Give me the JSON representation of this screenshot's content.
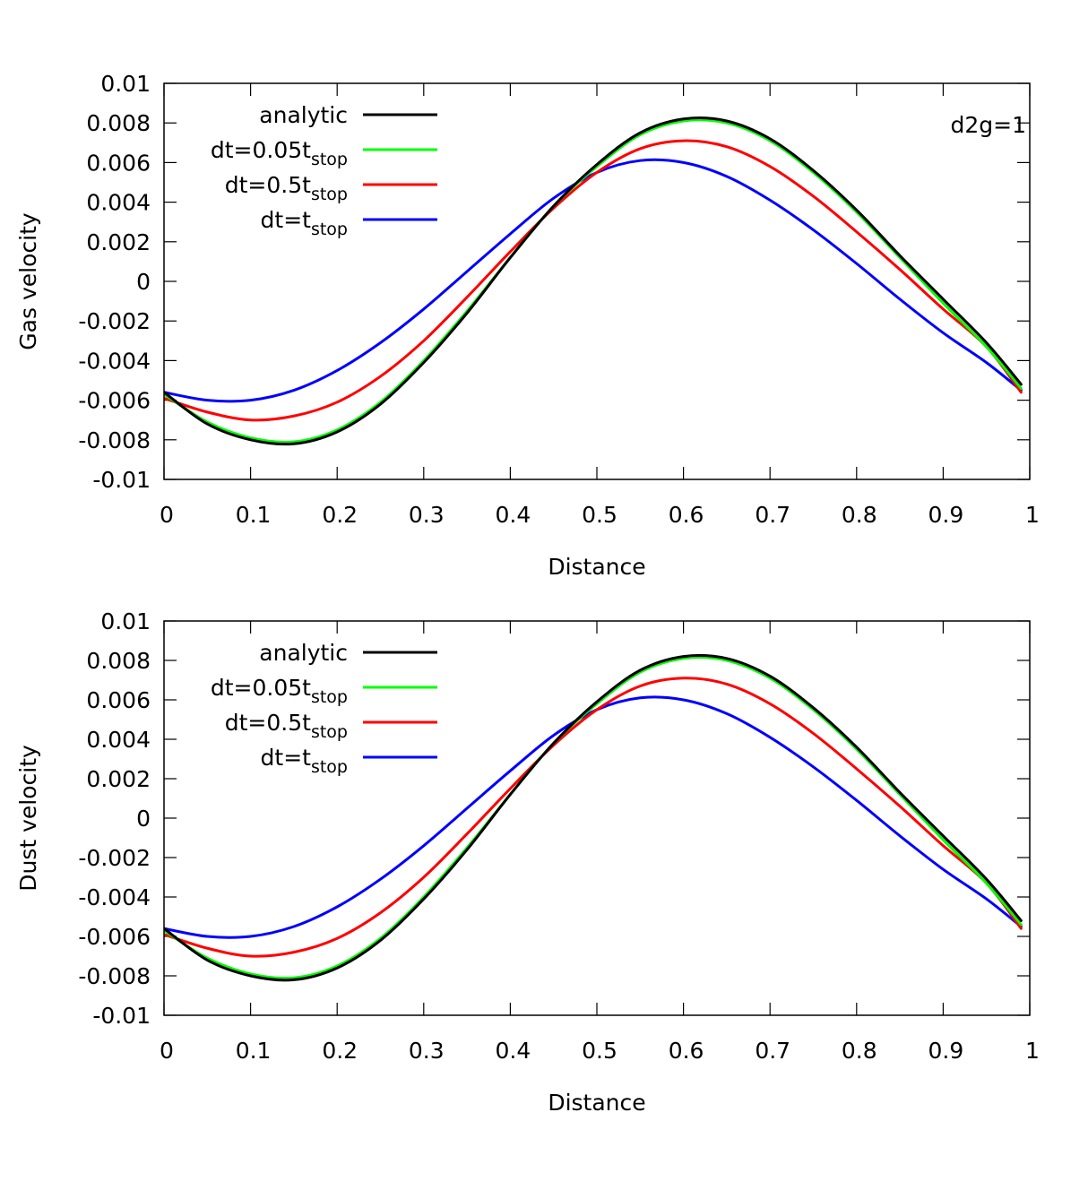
{
  "chart_data": [
    {
      "type": "line",
      "title": "",
      "xlabel": "Distance",
      "ylabel": "Gas velocity",
      "xlim": [
        0,
        1
      ],
      "ylim": [
        -0.01,
        0.01
      ],
      "xticks": [
        "0",
        "0.1",
        "0.2",
        "0.3",
        "0.4",
        "0.5",
        "0.6",
        "0.7",
        "0.8",
        "0.9",
        "1"
      ],
      "yticks": [
        "0.01",
        "0.008",
        "0.006",
        "0.004",
        "0.002",
        "0",
        "-0.002",
        "-0.004",
        "-0.006",
        "-0.008",
        "-0.01"
      ],
      "annotation": "d2g=1",
      "x": [
        0,
        0.05,
        0.1,
        0.15,
        0.2,
        0.25,
        0.3,
        0.35,
        0.4,
        0.45,
        0.5,
        0.55,
        0.6,
        0.65,
        0.7,
        0.75,
        0.8,
        0.85,
        0.9,
        0.95,
        0.99
      ],
      "series": [
        {
          "name": "analytic",
          "legend": {
            "main": "analytic",
            "sub": ""
          },
          "color": "#000000",
          "values": [
            -0.0056,
            -0.0072,
            -0.008,
            -0.0082,
            -0.0076,
            -0.0062,
            -0.0041,
            -0.0016,
            0.0012,
            0.0038,
            0.0059,
            0.0075,
            0.0082,
            0.0081,
            0.0072,
            0.0056,
            0.0036,
            0.0013,
            -0.0009,
            -0.0031,
            -0.0052
          ]
        },
        {
          "name": "dt=0.05t_stop",
          "legend": {
            "main": "dt=0.05t",
            "sub": "stop"
          },
          "color": "#00ff00",
          "values": [
            -0.0057,
            -0.0071,
            -0.0079,
            -0.0081,
            -0.0075,
            -0.0061,
            -0.004,
            -0.0015,
            0.0012,
            0.0038,
            0.0058,
            0.0074,
            0.0081,
            0.008,
            0.0071,
            0.0055,
            0.0035,
            0.0012,
            -0.0011,
            -0.0033,
            -0.0054
          ]
        },
        {
          "name": "dt=0.5t_stop",
          "legend": {
            "main": "dt=0.5t",
            "sub": "stop"
          },
          "color": "#ff0000",
          "values": [
            -0.0059,
            -0.0066,
            -0.007,
            -0.0068,
            -0.0061,
            -0.0048,
            -0.003,
            -0.0008,
            0.0015,
            0.0037,
            0.0055,
            0.0067,
            0.0071,
            0.0068,
            0.0058,
            0.0043,
            0.0025,
            0.0006,
            -0.0014,
            -0.0033,
            -0.0056
          ]
        },
        {
          "name": "dt=t_stop",
          "legend": {
            "main": "dt=t",
            "sub": "stop"
          },
          "color": "#0000ff",
          "values": [
            -0.0056,
            -0.006,
            -0.006,
            -0.0055,
            -0.0045,
            -0.0031,
            -0.0014,
            0.0005,
            0.0024,
            0.0042,
            0.0055,
            0.0061,
            0.006,
            0.0053,
            0.0041,
            0.0026,
            0.0009,
            -0.0009,
            -0.0026,
            -0.0041,
            -0.0055
          ]
        }
      ]
    },
    {
      "type": "line",
      "title": "",
      "xlabel": "Distance",
      "ylabel": "Dust velocity",
      "xlim": [
        0,
        1
      ],
      "ylim": [
        -0.01,
        0.01
      ],
      "xticks": [
        "0",
        "0.1",
        "0.2",
        "0.3",
        "0.4",
        "0.5",
        "0.6",
        "0.7",
        "0.8",
        "0.9",
        "1"
      ],
      "yticks": [
        "0.01",
        "0.008",
        "0.006",
        "0.004",
        "0.002",
        "0",
        "-0.002",
        "-0.004",
        "-0.006",
        "-0.008",
        "-0.01"
      ],
      "annotation": "",
      "x": [
        0,
        0.05,
        0.1,
        0.15,
        0.2,
        0.25,
        0.3,
        0.35,
        0.4,
        0.45,
        0.5,
        0.55,
        0.6,
        0.65,
        0.7,
        0.75,
        0.8,
        0.85,
        0.9,
        0.95,
        0.99
      ],
      "series": [
        {
          "name": "analytic",
          "legend": {
            "main": "analytic",
            "sub": ""
          },
          "color": "#000000",
          "values": [
            -0.0056,
            -0.0072,
            -0.008,
            -0.0082,
            -0.0076,
            -0.0062,
            -0.0041,
            -0.0016,
            0.0012,
            0.0038,
            0.0059,
            0.0075,
            0.0082,
            0.0081,
            0.0072,
            0.0056,
            0.0036,
            0.0013,
            -0.0009,
            -0.0031,
            -0.0052
          ]
        },
        {
          "name": "dt=0.05t_stop",
          "legend": {
            "main": "dt=0.05t",
            "sub": "stop"
          },
          "color": "#00ff00",
          "values": [
            -0.0057,
            -0.0071,
            -0.0079,
            -0.0081,
            -0.0075,
            -0.0061,
            -0.004,
            -0.0015,
            0.0012,
            0.0038,
            0.0058,
            0.0074,
            0.0081,
            0.008,
            0.0071,
            0.0055,
            0.0035,
            0.0012,
            -0.0011,
            -0.0033,
            -0.0054
          ]
        },
        {
          "name": "dt=0.5t_stop",
          "legend": {
            "main": "dt=0.5t",
            "sub": "stop"
          },
          "color": "#ff0000",
          "values": [
            -0.0059,
            -0.0066,
            -0.007,
            -0.0068,
            -0.0061,
            -0.0048,
            -0.003,
            -0.0008,
            0.0015,
            0.0037,
            0.0055,
            0.0067,
            0.0071,
            0.0068,
            0.0058,
            0.0043,
            0.0025,
            0.0006,
            -0.0014,
            -0.0033,
            -0.0056
          ]
        },
        {
          "name": "dt=t_stop",
          "legend": {
            "main": "dt=t",
            "sub": "stop"
          },
          "color": "#0000ff",
          "values": [
            -0.0056,
            -0.006,
            -0.006,
            -0.0055,
            -0.0045,
            -0.0031,
            -0.0014,
            0.0005,
            0.0024,
            0.0042,
            0.0055,
            0.0061,
            0.006,
            0.0053,
            0.0041,
            0.0026,
            0.0009,
            -0.0009,
            -0.0026,
            -0.0041,
            -0.0055
          ]
        }
      ]
    }
  ]
}
